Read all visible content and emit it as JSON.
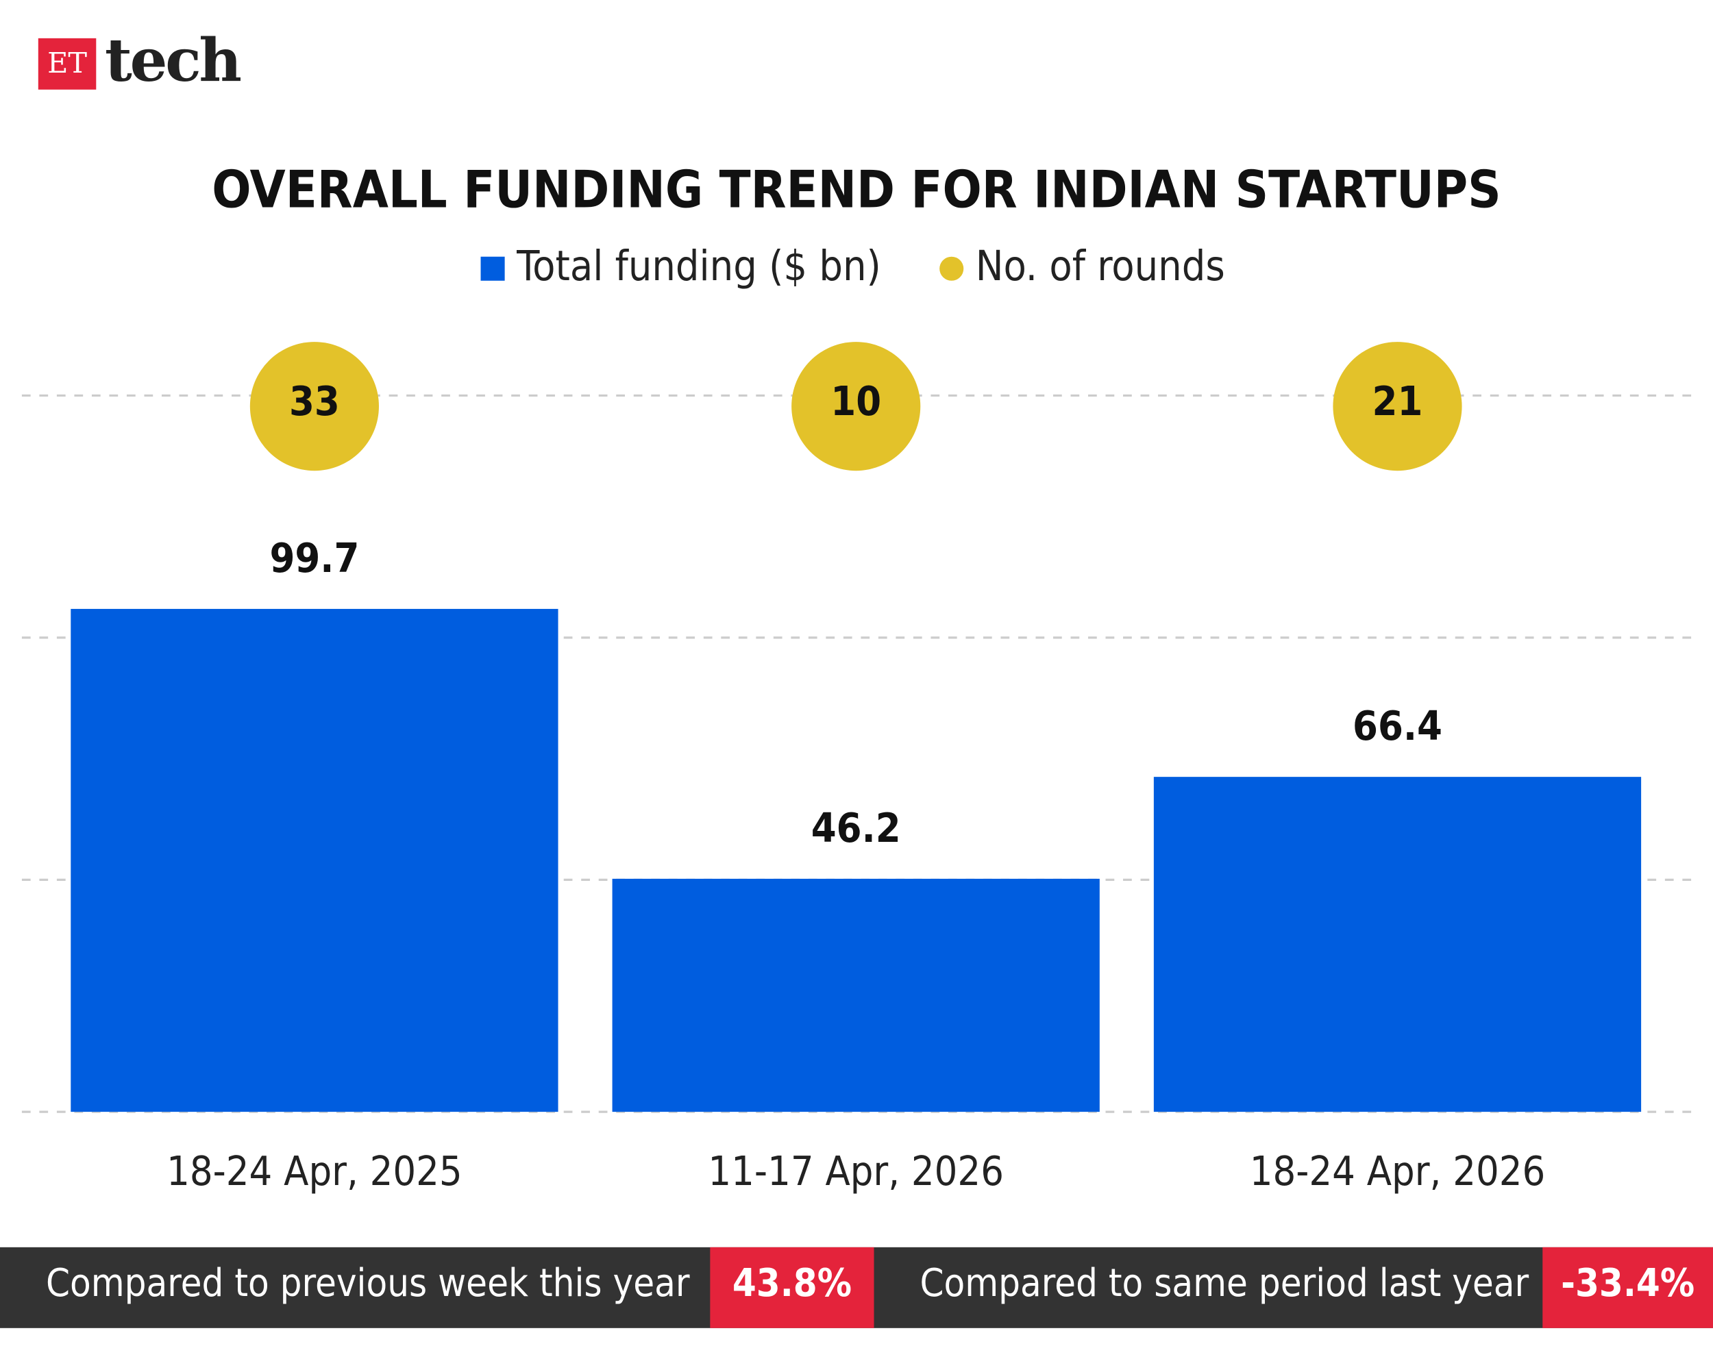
{
  "brand": {
    "mark": "ET",
    "name": "tech"
  },
  "chart_data": {
    "type": "bar",
    "title": "OVERALL FUNDING TREND FOR INDIAN STARTUPS",
    "categories": [
      "18-24 Apr, 2025",
      "11-17 Apr, 2026",
      "18-24 Apr, 2026"
    ],
    "series": [
      {
        "name": "Total funding ($ bn)",
        "color": "#005ddf",
        "values": [
          99.7,
          46.2,
          66.4
        ]
      },
      {
        "name": "No. of rounds",
        "color": "#e3c22a",
        "type": "dot",
        "values": [
          33,
          10,
          21
        ]
      }
    ],
    "ylim": [
      0,
      160
    ],
    "yticks": [
      0,
      46,
      94,
      142
    ],
    "grid": true
  },
  "footer": [
    {
      "label": "Compared to previous week this year",
      "value": "43.8%"
    },
    {
      "label": "Compared to same period last year",
      "value": "-33.4%"
    }
  ]
}
